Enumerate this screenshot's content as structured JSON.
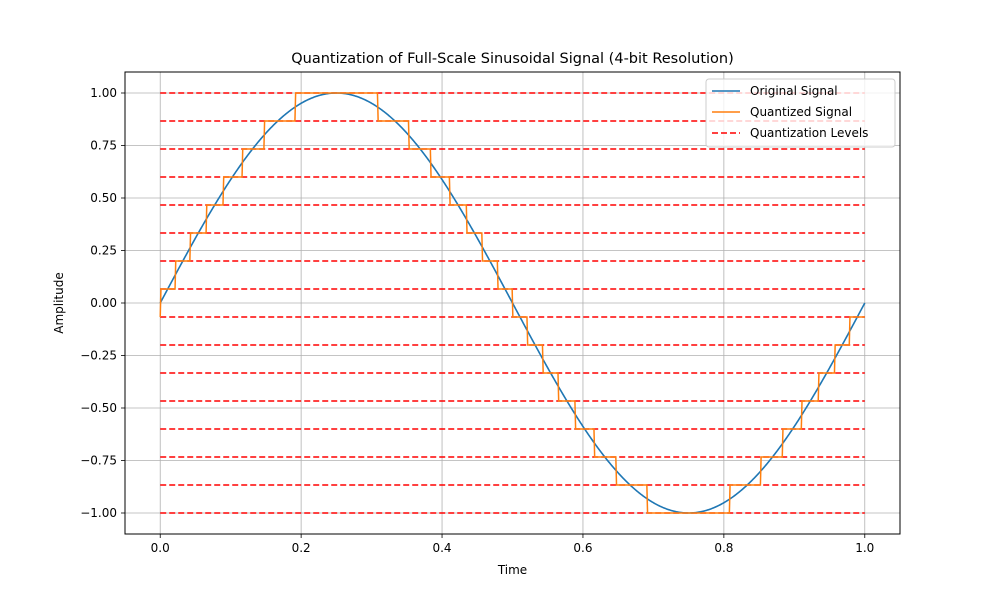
{
  "chart_data": {
    "type": "line",
    "title": "Quantization of Full-Scale Sinusoidal Signal (4-bit Resolution)",
    "xlabel": "Time",
    "ylabel": "Amplitude",
    "xlim": [
      -0.05,
      1.05
    ],
    "ylim": [
      -1.1,
      1.1
    ],
    "xticks": [
      0.0,
      0.2,
      0.4,
      0.6,
      0.8,
      1.0
    ],
    "xtick_labels": [
      "0.0",
      "0.2",
      "0.4",
      "0.6",
      "0.8",
      "1.0"
    ],
    "yticks": [
      -1.0,
      -0.75,
      -0.5,
      -0.25,
      0.0,
      0.25,
      0.5,
      0.75,
      1.0
    ],
    "ytick_labels": [
      "−1.00",
      "−0.75",
      "−0.50",
      "−0.25",
      "0.00",
      "0.25",
      "0.50",
      "0.75",
      "1.00"
    ],
    "grid": true,
    "legend_position": "top-right",
    "signal_function": "sin(2*pi*t)",
    "time_range": [
      0.0,
      1.0
    ],
    "bits": 4,
    "quantization_levels": [
      -1.0,
      -0.8667,
      -0.7333,
      -0.6,
      -0.4667,
      -0.3333,
      -0.2,
      -0.0667,
      0.0667,
      0.2,
      0.3333,
      0.4667,
      0.6,
      0.7333,
      0.8667,
      1.0
    ],
    "series": [
      {
        "name": "Original Signal",
        "color": "#1f77b4",
        "style": "solid"
      },
      {
        "name": "Quantized Signal",
        "color": "#ff7f0e",
        "style": "solid"
      },
      {
        "name": "Quantization Levels",
        "color": "#ff0000",
        "style": "dashed"
      }
    ]
  }
}
